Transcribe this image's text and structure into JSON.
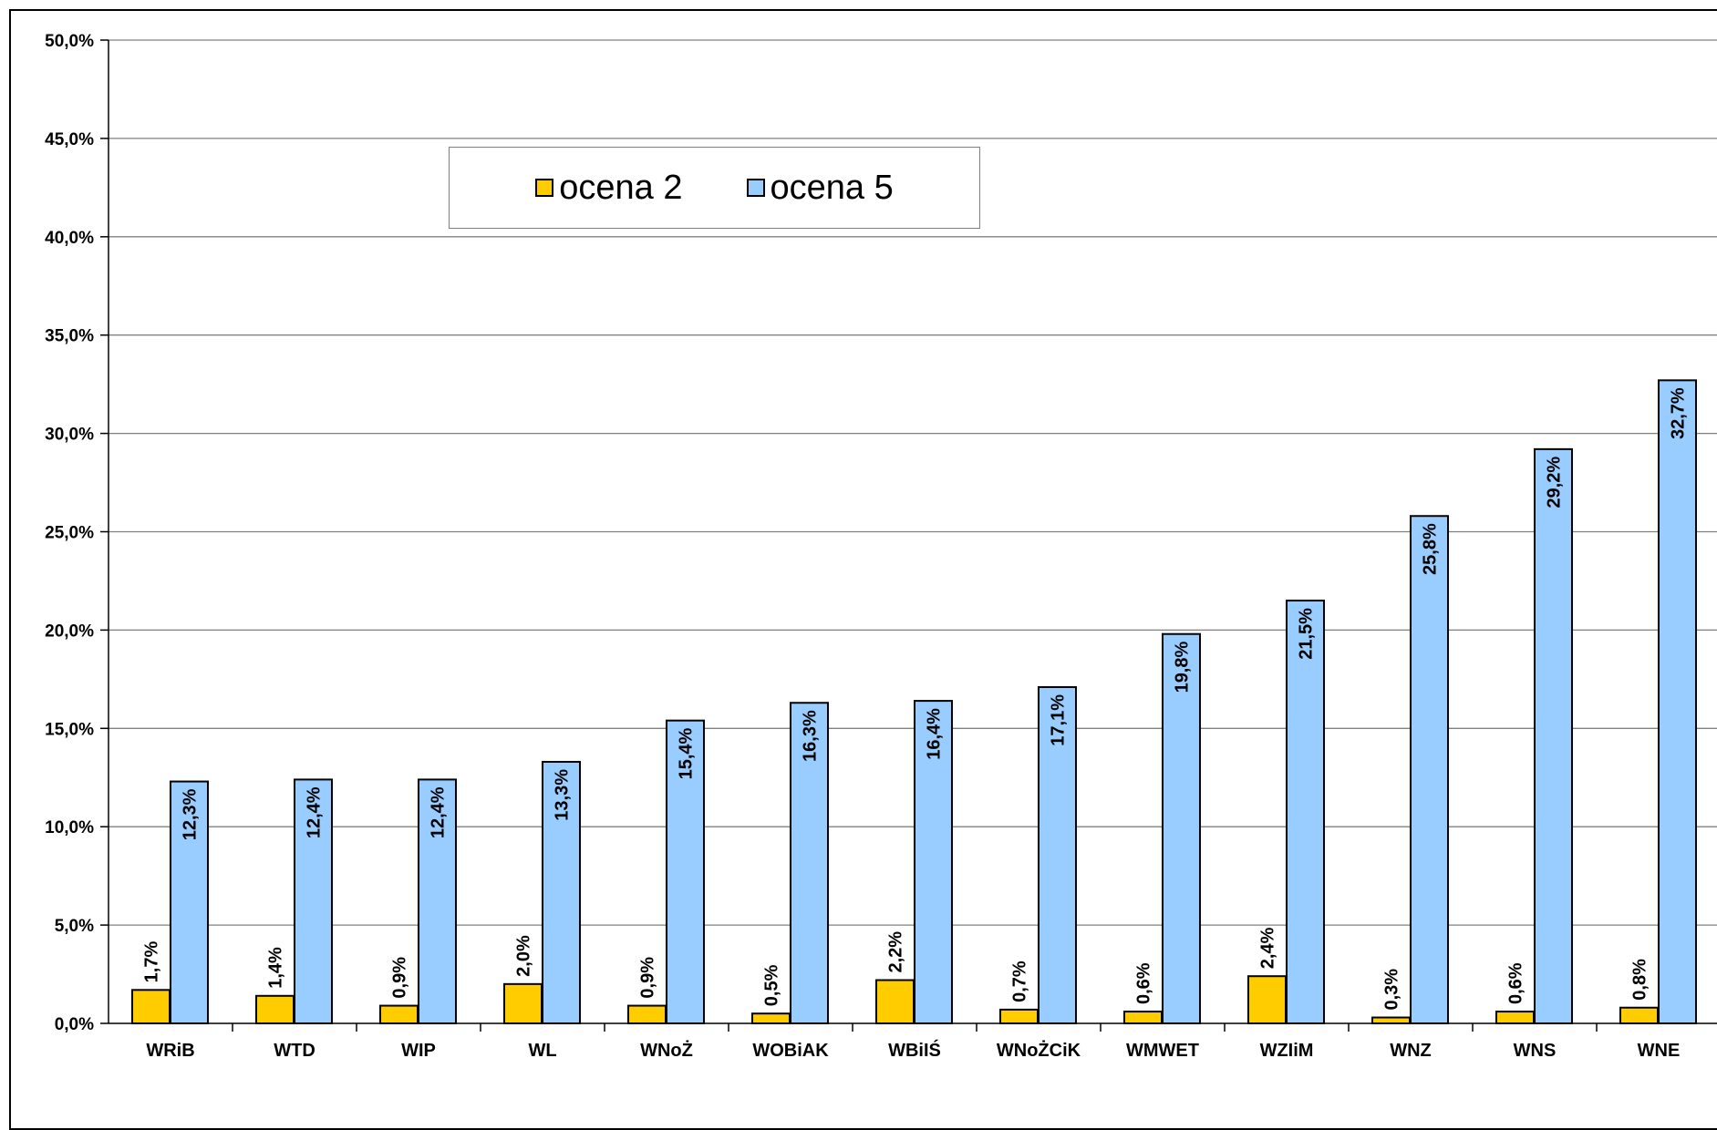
{
  "chart_data": {
    "type": "bar",
    "categories": [
      "WRiB",
      "WTD",
      "WIP",
      "WL",
      "WNoŻ",
      "WOBiAK",
      "WBiIŚ",
      "WNoŻCiK",
      "WMWET",
      "WZIiM",
      "WNZ",
      "WNS",
      "WNE"
    ],
    "series": [
      {
        "name": "ocena 2",
        "color": "#FFCC00",
        "values": [
          1.7,
          1.4,
          0.9,
          2.0,
          0.9,
          0.5,
          2.2,
          0.7,
          0.6,
          2.4,
          0.3,
          0.6,
          0.8
        ],
        "labels": [
          "1,7%",
          "1,4%",
          "0,9%",
          "2,0%",
          "0,9%",
          "0,5%",
          "2,2%",
          "0,7%",
          "0,6%",
          "2,4%",
          "0,3%",
          "0,6%",
          "0,8%"
        ]
      },
      {
        "name": "ocena 5",
        "color": "#99CCFF",
        "values": [
          12.3,
          12.4,
          12.4,
          13.3,
          15.4,
          16.3,
          16.4,
          17.1,
          19.8,
          21.5,
          25.8,
          29.2,
          32.7
        ],
        "labels": [
          "12,3%",
          "12,4%",
          "12,4%",
          "13,3%",
          "15,4%",
          "16,3%",
          "16,4%",
          "17,1%",
          "19,8%",
          "21,5%",
          "25,8%",
          "29,2%",
          "32,7%"
        ]
      }
    ],
    "ylim": [
      0,
      50
    ],
    "yticks": [
      0,
      5,
      10,
      15,
      20,
      25,
      30,
      35,
      40,
      45,
      50
    ],
    "ytick_labels": [
      "0,0%",
      "5,0%",
      "10,0%",
      "15,0%",
      "20,0%",
      "25,0%",
      "30,0%",
      "35,0%",
      "40,0%",
      "45,0%",
      "50,0%"
    ],
    "grid": true,
    "legend": {
      "position": "top-left",
      "entries": [
        "ocena 2",
        "ocena 5"
      ]
    },
    "title": "",
    "xlabel": "",
    "ylabel": ""
  }
}
